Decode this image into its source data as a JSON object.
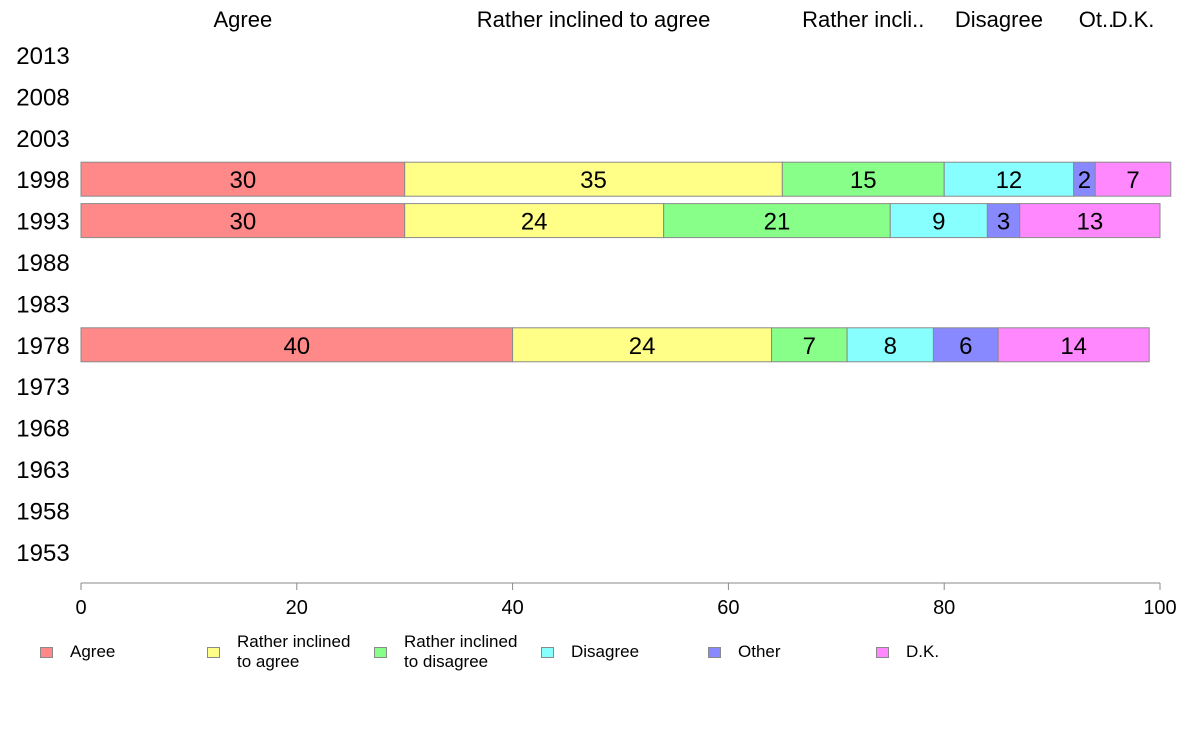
{
  "chart_data": {
    "type": "bar",
    "orientation": "horizontal",
    "stacked": true,
    "categories": [
      "2013",
      "2008",
      "2003",
      "1998",
      "1993",
      "1988",
      "1983",
      "1978",
      "1973",
      "1968",
      "1963",
      "1958",
      "1953"
    ],
    "series": [
      {
        "name": "Agree",
        "color": "#ff8888",
        "values": [
          null,
          null,
          null,
          30,
          30,
          null,
          null,
          40,
          null,
          null,
          null,
          null,
          null
        ]
      },
      {
        "name": "Rather inclined to agree",
        "color": "#ffff88",
        "values": [
          null,
          null,
          null,
          35,
          24,
          null,
          null,
          24,
          null,
          null,
          null,
          null,
          null
        ]
      },
      {
        "name": "Rather inclined to disagree",
        "color": "#88ff88",
        "values": [
          null,
          null,
          null,
          15,
          21,
          null,
          null,
          7,
          null,
          null,
          null,
          null,
          null
        ]
      },
      {
        "name": "Disagree",
        "color": "#88ffff",
        "values": [
          null,
          null,
          null,
          12,
          9,
          null,
          null,
          8,
          null,
          null,
          null,
          null,
          null
        ]
      },
      {
        "name": "Other",
        "color": "#8888ff",
        "values": [
          null,
          null,
          null,
          2,
          3,
          null,
          null,
          6,
          null,
          null,
          null,
          null,
          null
        ]
      },
      {
        "name": "D.K.",
        "color": "#ff88ff",
        "values": [
          null,
          null,
          null,
          7,
          13,
          null,
          null,
          14,
          null,
          null,
          null,
          null,
          null
        ]
      }
    ],
    "top_labels": [
      "Agree",
      "Rather inclined to agree",
      "Rather incli..",
      "Disagree",
      "Ot..",
      "D.K."
    ],
    "legend_labels": [
      "Agree",
      "Rather inclined\nto agree",
      "Rather inclined\nto disagree",
      "Disagree",
      "Other",
      "D.K."
    ],
    "xlim": [
      0,
      100
    ],
    "xticks": [
      0,
      20,
      40,
      60,
      80,
      100
    ],
    "legend_position": "bottom",
    "grid": false
  }
}
